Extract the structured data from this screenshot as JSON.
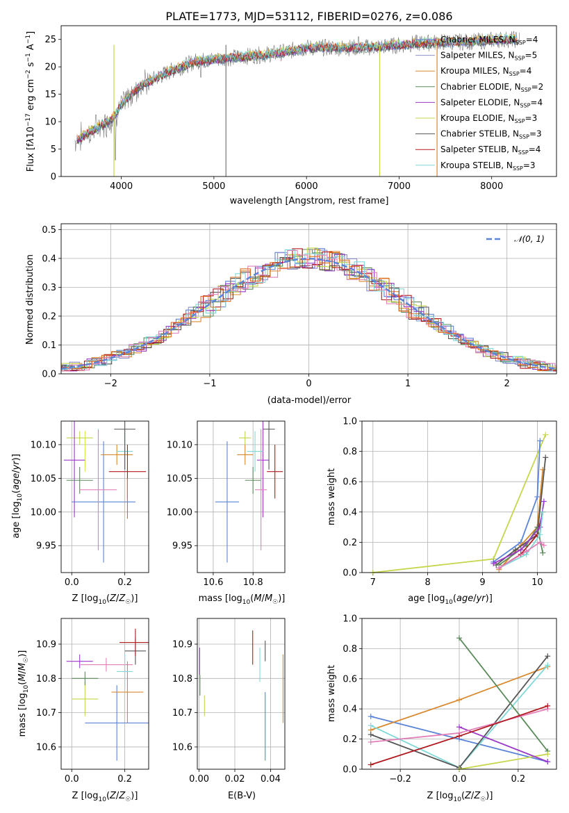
{
  "colors": {
    "Chabrier MILES": "#5b84d6",
    "Salpeter MILES": "#8f8fd0",
    "Kroupa MILES": "#d9892d",
    "Chabrier ELODIE": "#5b8a5b",
    "Salpeter ELODIE": "#9b38c8",
    "Kroupa ELODIE": "#c5d64a",
    "Chabrier STELIB": "#555555",
    "Salpeter STELIB": "#b0191e",
    "Kroupa STELIB": "#80d8d8",
    "extra_pink": "#e27fb9",
    "extra_orange": "#e06a1b",
    "extra_yellow": "#d7e84a"
  },
  "chart_data": [
    {
      "id": "spectrum",
      "type": "line",
      "title": "PLATE=1773, MJD=53112, FIBERID=0276, z=0.086",
      "xlabel": "wavelength [Angstrom, rest frame]",
      "ylabel": "Flux [f_λ 10^-17 erg cm^-2 s^-1 A^-1]",
      "xlim": [
        3350,
        8700
      ],
      "ylim": [
        0,
        27.5
      ],
      "xticks": [
        "4000",
        "5000",
        "6000",
        "7000",
        "8000"
      ],
      "yticks": [
        "0",
        "5",
        "10",
        "15",
        "20",
        "25"
      ],
      "legend": [
        {
          "name": "Chabrier MILES",
          "nssp": "4"
        },
        {
          "name": "Salpeter MILES",
          "nssp": "5"
        },
        {
          "name": "Kroupa MILES",
          "nssp": "4"
        },
        {
          "name": "Chabrier ELODIE",
          "nssp": "2"
        },
        {
          "name": "Salpeter ELODIE",
          "nssp": "4"
        },
        {
          "name": "Kroupa ELODIE",
          "nssp": "3"
        },
        {
          "name": "Chabrier STELIB",
          "nssp": "3"
        },
        {
          "name": "Salpeter STELIB",
          "nssp": "4"
        },
        {
          "name": "Kroupa STELIB",
          "nssp": "3"
        }
      ],
      "legend_position": "right",
      "continuum": [
        [
          3500,
          6.5
        ],
        [
          3700,
          8.5
        ],
        [
          3900,
          10.5
        ],
        [
          4000,
          13
        ],
        [
          4200,
          16.5
        ],
        [
          4500,
          19
        ],
        [
          4800,
          21
        ],
        [
          5100,
          21.5
        ],
        [
          5400,
          22
        ],
        [
          5700,
          22.5
        ],
        [
          6000,
          23.5
        ],
        [
          6300,
          23.5
        ],
        [
          6600,
          23.5
        ],
        [
          6900,
          23.8
        ],
        [
          7200,
          24.3
        ],
        [
          7500,
          24.5
        ],
        [
          7800,
          24.6
        ],
        [
          8100,
          25
        ],
        [
          8300,
          25
        ]
      ]
    },
    {
      "id": "residuals",
      "type": "line",
      "xlabel": "(data-model)/error",
      "ylabel": "Normed distribution",
      "xlim": [
        -2.5,
        2.5
      ],
      "ylim": [
        0,
        0.52
      ],
      "xticks": [
        "−2",
        "−1",
        "0",
        "1",
        "2"
      ],
      "yticks": [
        "0.0",
        "0.1",
        "0.2",
        "0.3",
        "0.4",
        "0.5"
      ],
      "reference_label": "𝒩(0, 1)",
      "bin_width": 0.1
    },
    {
      "id": "age_vs_Z",
      "type": "scatter",
      "xlabel": "Z [log10(Z/Z☉)]",
      "ylabel": "age  [log10(age/yr)]",
      "xlim": [
        -0.04,
        0.29
      ],
      "ylim": [
        9.91,
        10.135
      ],
      "xticks": [
        "0.0",
        "0.2"
      ],
      "yticks": [
        "9.95",
        "10.00",
        "10.05",
        "10.10"
      ],
      "points": [
        {
          "c": "Chabrier MILES",
          "x": 0.12,
          "y": 10.015,
          "xe": 0.12,
          "ye": 0.09
        },
        {
          "c": "Kroupa ELODIE",
          "x": 0.03,
          "y": 10.11,
          "xe": 0.05,
          "ye": 0.01
        },
        {
          "c": "extra_yellow",
          "x": 0.05,
          "y": 10.09,
          "xe": 0.0,
          "ye": 0.03
        },
        {
          "c": "Salpeter ELODIE",
          "x": 0.01,
          "y": 10.077,
          "xe": 0.04,
          "ye": 0.085
        },
        {
          "c": "Chabrier ELODIE",
          "x": 0.03,
          "y": 10.047,
          "xe": 0.05,
          "ye": 0.02
        },
        {
          "c": "extra_pink",
          "x": 0.1,
          "y": 10.033,
          "xe": 0.07,
          "ye": 0.09
        },
        {
          "c": "Kroupa MILES",
          "x": 0.17,
          "y": 10.085,
          "xe": 0.06,
          "ye": 0.015
        },
        {
          "c": "Kroupa STELIB",
          "x": 0.2,
          "y": 10.09,
          "xe": 0.03,
          "ye": 0.03
        },
        {
          "c": "Chabrier STELIB",
          "x": 0.2,
          "y": 10.123,
          "xe": 0.04,
          "ye": 0.06
        },
        {
          "c": "Salpeter STELIB",
          "x": 0.21,
          "y": 10.06,
          "xe": 0.07,
          "ye": 0.04
        },
        {
          "c": "extra_orange",
          "x": 0.21,
          "y": 10.02,
          "xe": 0.0,
          "ye": 0.03
        }
      ]
    },
    {
      "id": "age_vs_mass",
      "type": "scatter",
      "xlabel": "mass [log10(M/M☉)]",
      "ylabel": "",
      "xlim": [
        10.52,
        10.96
      ],
      "ylim": [
        9.91,
        10.135
      ],
      "xticks": [
        "10.6",
        "10.8"
      ],
      "yticks": [
        "9.95",
        "10.00",
        "10.05",
        "10.10"
      ],
      "points": [
        {
          "c": "Chabrier MILES",
          "x": 10.67,
          "y": 10.015,
          "xe": 0.06,
          "ye": 0.09
        },
        {
          "c": "Kroupa ELODIE",
          "x": 10.76,
          "y": 10.11,
          "xe": 0.03,
          "ye": 0.01
        },
        {
          "c": "Salpeter ELODIE",
          "x": 10.85,
          "y": 10.077,
          "xe": 0.03,
          "ye": 0.085
        },
        {
          "c": "Chabrier ELODIE",
          "x": 10.8,
          "y": 10.047,
          "xe": 0.04,
          "ye": 0.02
        },
        {
          "c": "extra_pink",
          "x": 10.84,
          "y": 10.033,
          "xe": 0.03,
          "ye": 0.09
        },
        {
          "c": "Kroupa MILES",
          "x": 10.76,
          "y": 10.085,
          "xe": 0.04,
          "ye": 0.015
        },
        {
          "c": "Kroupa STELIB",
          "x": 10.81,
          "y": 10.09,
          "xe": 0.04,
          "ye": 0.03
        },
        {
          "c": "Chabrier STELIB",
          "x": 10.88,
          "y": 10.123,
          "xe": 0.03,
          "ye": 0.06
        },
        {
          "c": "Salpeter STELIB",
          "x": 10.91,
          "y": 10.06,
          "xe": 0.04,
          "ye": 0.04
        }
      ]
    },
    {
      "id": "massweight_vs_age",
      "type": "line",
      "xlabel": "age  [log10(age/yr)]",
      "ylabel": "mass weight",
      "xlim": [
        6.8,
        10.35
      ],
      "ylim": [
        0,
        1.0
      ],
      "xticks": [
        "7",
        "8",
        "9",
        "10"
      ],
      "yticks": [
        "0.0",
        "0.2",
        "0.4",
        "0.6",
        "0.8",
        "1.0"
      ],
      "series": [
        {
          "c": "Kroupa ELODIE",
          "x": [
            7.0,
            9.2,
            10.15
          ],
          "y": [
            0.0,
            0.09,
            0.91
          ]
        },
        {
          "c": "Chabrier MILES",
          "x": [
            9.2,
            9.7,
            10.0,
            10.05
          ],
          "y": [
            0.07,
            0.2,
            0.5,
            0.87
          ]
        },
        {
          "c": "Kroupa MILES",
          "x": [
            9.3,
            9.7,
            10.0,
            10.1
          ],
          "y": [
            0.02,
            0.18,
            0.3,
            0.68
          ]
        },
        {
          "c": "Chabrier STELIB",
          "x": [
            9.25,
            9.6,
            10.0,
            10.15
          ],
          "y": [
            0.05,
            0.15,
            0.25,
            0.76
          ]
        },
        {
          "c": "Salpeter STELIB",
          "x": [
            9.3,
            9.7,
            10.0,
            10.1
          ],
          "y": [
            0.03,
            0.12,
            0.25,
            0.4
          ]
        },
        {
          "c": "Chabrier ELODIE",
          "x": [
            9.3,
            9.8,
            10.0,
            10.1
          ],
          "y": [
            0.05,
            0.18,
            0.3,
            0.13
          ]
        },
        {
          "c": "Salpeter ELODIE",
          "x": [
            9.2,
            9.7,
            10.05,
            10.12
          ],
          "y": [
            0.06,
            0.15,
            0.3,
            0.47
          ]
        },
        {
          "c": "Kroupa STELIB",
          "x": [
            9.3,
            9.8,
            10.05,
            10.1
          ],
          "y": [
            0.03,
            0.12,
            0.25,
            0.4
          ]
        },
        {
          "c": "extra_pink",
          "x": [
            9.3,
            9.8,
            10.05,
            10.12
          ],
          "y": [
            0.03,
            0.14,
            0.2,
            0.18
          ]
        }
      ]
    },
    {
      "id": "mass_vs_Z",
      "type": "scatter",
      "xlabel": "Z [log10(Z/Z☉)]",
      "ylabel": "mass [log10(M/M☉)]",
      "xlim": [
        -0.04,
        0.29
      ],
      "ylim": [
        10.535,
        10.975
      ],
      "xticks": [
        "0.0",
        "0.2"
      ],
      "yticks": [
        "10.6",
        "10.7",
        "10.8",
        "10.9"
      ],
      "points": [
        {
          "c": "Chabrier MILES",
          "x": 0.17,
          "y": 10.67,
          "xe": 0.12,
          "ye": 0.11
        },
        {
          "c": "Kroupa ELODIE",
          "x": 0.05,
          "y": 10.74,
          "xe": 0.05,
          "ye": 0.05
        },
        {
          "c": "Salpeter ELODIE",
          "x": 0.03,
          "y": 10.85,
          "xe": 0.05,
          "ye": 0.02
        },
        {
          "c": "Chabrier ELODIE",
          "x": 0.05,
          "y": 10.8,
          "xe": 0.05,
          "ye": 0.02
        },
        {
          "c": "extra_pink",
          "x": 0.13,
          "y": 10.84,
          "xe": 0.1,
          "ye": 0.02
        },
        {
          "c": "Kroupa MILES",
          "x": 0.21,
          "y": 10.76,
          "xe": 0.06,
          "ye": 0.09
        },
        {
          "c": "Kroupa STELIB",
          "x": 0.2,
          "y": 10.82,
          "xe": 0.03,
          "ye": 0.05
        },
        {
          "c": "Chabrier STELIB",
          "x": 0.24,
          "y": 10.88,
          "xe": 0.04,
          "ye": 0.04
        },
        {
          "c": "Salpeter STELIB",
          "x": 0.24,
          "y": 10.905,
          "xe": 0.06,
          "ye": 0.04
        }
      ]
    },
    {
      "id": "mass_vs_EBV",
      "type": "scatter",
      "xlabel": "E(B-V)",
      "ylabel": "",
      "xlim": [
        -0.001,
        0.048
      ],
      "ylim": [
        10.535,
        10.975
      ],
      "xticks": [
        "0.00",
        "0.02",
        "0.04"
      ],
      "yticks": [
        "10.6",
        "10.7",
        "10.8",
        "10.9"
      ],
      "points": [
        {
          "c": "Salpeter ELODIE",
          "x": 0.0003,
          "y": 10.85,
          "ye": 0.04
        },
        {
          "c": "Chabrier ELODIE",
          "x": 0.0005,
          "y": 10.78,
          "ye": 0.03
        },
        {
          "c": "Kroupa ELODIE",
          "x": 0.003,
          "y": 10.72,
          "ye": 0.03
        },
        {
          "c": "Salpeter STELIB",
          "x": 0.03,
          "y": 10.89,
          "ye": 0.05
        },
        {
          "c": "Kroupa STELIB",
          "x": 0.034,
          "y": 10.84,
          "ye": 0.05
        },
        {
          "c": "Chabrier STELIB",
          "x": 0.037,
          "y": 10.88,
          "ye": 0.03
        },
        {
          "c": "Chabrier MILES",
          "x": 0.037,
          "y": 10.66,
          "ye": 0.1
        },
        {
          "c": "Kroupa MILES",
          "x": 0.047,
          "y": 10.77,
          "ye": 0.1
        }
      ]
    },
    {
      "id": "massweight_vs_Z",
      "type": "line",
      "xlabel": "Z [log10(Z/Z☉)]",
      "ylabel": "mass weight",
      "xlim": [
        -0.33,
        0.33
      ],
      "ylim": [
        0,
        1.0
      ],
      "xticks": [
        "−0.2",
        "0.0",
        "0.2"
      ],
      "yticks": [
        "0.0",
        "0.2",
        "0.4",
        "0.6",
        "0.8",
        "1.0"
      ],
      "series": [
        {
          "c": "Chabrier MILES",
          "x": [
            -0.3,
            0.0,
            0.3
          ],
          "y": [
            0.35,
            0.2,
            0.05
          ]
        },
        {
          "c": "Kroupa MILES",
          "x": [
            -0.3,
            0.0,
            0.3
          ],
          "y": [
            0.26,
            0.46,
            0.68
          ]
        },
        {
          "c": "Kroupa STELIB",
          "x": [
            -0.3,
            0.0,
            0.3
          ],
          "y": [
            0.29,
            0.01,
            0.69
          ]
        },
        {
          "c": "Chabrier STELIB",
          "x": [
            -0.3,
            0.0,
            0.3
          ],
          "y": [
            0.23,
            0.01,
            0.75
          ]
        },
        {
          "c": "Chabrier ELODIE",
          "x": [
            0.0,
            0.3
          ],
          "y": [
            0.87,
            0.12
          ]
        },
        {
          "c": "Kroupa ELODIE",
          "x": [
            0.0,
            0.3
          ],
          "y": [
            0.0,
            0.1
          ]
        },
        {
          "c": "Salpeter ELODIE",
          "x": [
            0.0,
            0.3
          ],
          "y": [
            0.28,
            0.05
          ]
        },
        {
          "c": "extra_pink",
          "x": [
            -0.3,
            0.0,
            0.3
          ],
          "y": [
            0.18,
            0.24,
            0.4
          ]
        },
        {
          "c": "Salpeter STELIB",
          "x": [
            -0.3,
            0.0,
            0.3
          ],
          "y": [
            0.03,
            0.22,
            0.42
          ]
        }
      ]
    }
  ]
}
